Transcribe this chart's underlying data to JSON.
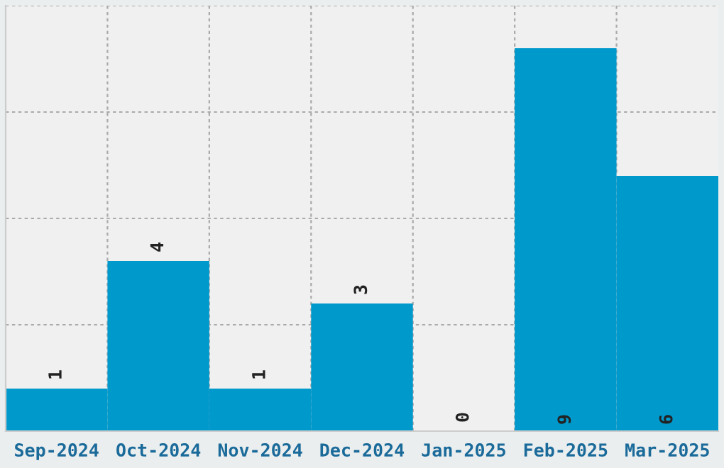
{
  "chart_data": {
    "type": "bar",
    "categories": [
      "Sep-2024",
      "Oct-2024",
      "Nov-2024",
      "Dec-2024",
      "Jan-2025",
      "Feb-2025",
      "Mar-2025"
    ],
    "values": [
      1,
      4,
      1,
      3,
      0,
      9,
      6
    ],
    "color": "#0099cc",
    "ylim": [
      0,
      10
    ],
    "yticks": [
      {
        "value": 0,
        "label": null
      },
      {
        "value": 2.5,
        "label": null
      },
      {
        "value": 5,
        "label": null
      },
      {
        "value": 7.5,
        "label": null
      },
      {
        "value": 10,
        "label": null
      }
    ],
    "tick_labels": "x",
    "grid": true,
    "data_labels": true
  }
}
